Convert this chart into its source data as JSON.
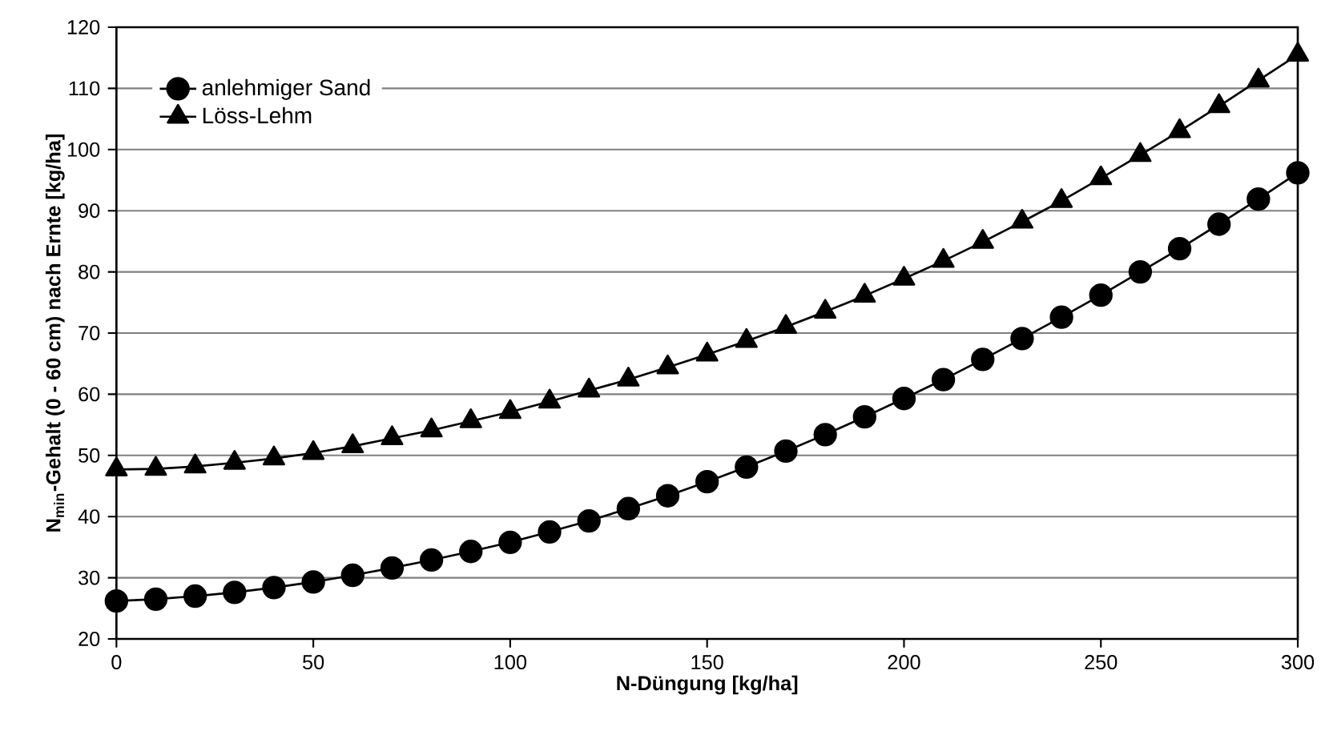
{
  "chart_data": {
    "type": "line",
    "xlabel": "N-Düngung [kg/ha]",
    "ylabel": "N$_{min}$-Gehalt (0 - 60 cm) nach Ernte [kg/ha]",
    "x": [
      0,
      10,
      20,
      30,
      40,
      50,
      60,
      70,
      80,
      90,
      100,
      110,
      120,
      130,
      140,
      150,
      160,
      170,
      180,
      190,
      200,
      210,
      220,
      230,
      240,
      250,
      260,
      270,
      280,
      290,
      300
    ],
    "series": [
      {
        "name": "anlehmiger Sand",
        "color": "#000000",
        "marker": "circle",
        "values": [
          26.2,
          26.5,
          27.0,
          27.6,
          28.4,
          29.3,
          30.4,
          31.6,
          32.9,
          34.3,
          35.8,
          37.5,
          39.3,
          41.3,
          43.4,
          45.7,
          48.1,
          50.7,
          53.4,
          56.3,
          59.3,
          62.4,
          65.7,
          69.1,
          72.6,
          76.2,
          80.0,
          83.8,
          87.8,
          91.9,
          96.2
        ]
      },
      {
        "name": "Löss-Lehm",
        "color": "#000000",
        "marker": "triangle",
        "values": [
          47.7,
          47.8,
          48.2,
          48.8,
          49.5,
          50.4,
          51.5,
          52.8,
          54.1,
          55.6,
          57.1,
          58.8,
          60.6,
          62.4,
          64.4,
          66.5,
          68.7,
          71.0,
          73.5,
          76.1,
          78.9,
          81.8,
          84.9,
          88.2,
          91.6,
          95.3,
          99.1,
          103.0,
          107.1,
          111.3,
          115.5
        ]
      }
    ],
    "xlim": [
      0,
      300
    ],
    "xticks": [
      0,
      50,
      100,
      150,
      200,
      250,
      300
    ],
    "ylim": [
      20,
      120
    ],
    "yticks": [
      20,
      30,
      40,
      50,
      60,
      70,
      80,
      90,
      100,
      110,
      120
    ],
    "grid": "y",
    "legend": "top left",
    "line_style": "solid"
  }
}
